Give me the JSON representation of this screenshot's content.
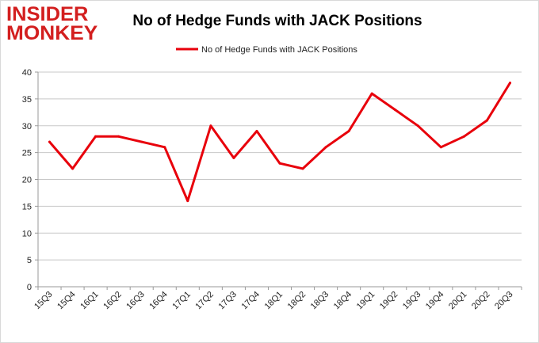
{
  "logo": {
    "line1": "INSIDER",
    "line2": "MONKEY"
  },
  "chart_data": {
    "type": "line",
    "title": "No of Hedge Funds with JACK Positions",
    "categories": [
      "15Q3",
      "15Q4",
      "16Q1",
      "16Q2",
      "16Q3",
      "16Q4",
      "17Q1",
      "17Q2",
      "17Q3",
      "17Q4",
      "18Q1",
      "18Q2",
      "18Q3",
      "18Q4",
      "19Q1",
      "19Q2",
      "19Q3",
      "19Q4",
      "20Q1",
      "20Q2",
      "20Q3"
    ],
    "series": [
      {
        "name": "No of Hedge Funds with JACK Positions",
        "values": [
          27,
          22,
          28,
          28,
          27,
          26,
          16,
          30,
          24,
          29,
          23,
          22,
          26,
          29,
          36,
          33,
          30,
          26,
          28,
          31,
          38
        ]
      }
    ],
    "ylim": [
      0,
      40
    ],
    "yticks": [
      0,
      5,
      10,
      15,
      20,
      25,
      30,
      35,
      40
    ],
    "grid": true,
    "legend": "top-center",
    "line_color": "#e8000b",
    "xlabel": "",
    "ylabel": ""
  }
}
